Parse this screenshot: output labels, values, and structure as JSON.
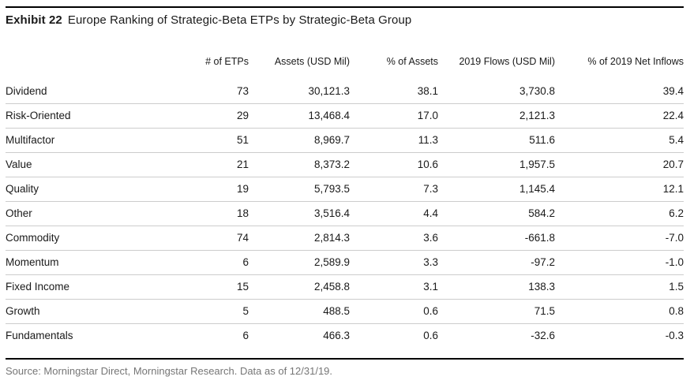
{
  "exhibit": {
    "label": "Exhibit 22",
    "title": "Europe Ranking of Strategic-Beta ETPs by Strategic-Beta Group"
  },
  "table": {
    "label_column_header": "",
    "columns": [
      "# of ETPs",
      "Assets (USD Mil)",
      "% of Assets",
      "2019 Flows (USD Mil)",
      "% of 2019 Net Inflows"
    ],
    "rows": [
      {
        "label": "Dividend",
        "values": [
          "73",
          "30,121.3",
          "38.1",
          "3,730.8",
          "39.4"
        ]
      },
      {
        "label": "Risk-Oriented",
        "values": [
          "29",
          "13,468.4",
          "17.0",
          "2,121.3",
          "22.4"
        ]
      },
      {
        "label": "Multifactor",
        "values": [
          "51",
          "8,969.7",
          "11.3",
          "511.6",
          "5.4"
        ]
      },
      {
        "label": "Value",
        "values": [
          "21",
          "8,373.2",
          "10.6",
          "1,957.5",
          "20.7"
        ]
      },
      {
        "label": "Quality",
        "values": [
          "19",
          "5,793.5",
          "7.3",
          "1,145.4",
          "12.1"
        ]
      },
      {
        "label": "Other",
        "values": [
          "18",
          "3,516.4",
          "4.4",
          "584.2",
          "6.2"
        ]
      },
      {
        "label": "Commodity",
        "values": [
          "74",
          "2,814.3",
          "3.6",
          "-661.8",
          "-7.0"
        ]
      },
      {
        "label": "Momentum",
        "values": [
          "6",
          "2,589.9",
          "3.3",
          "-97.2",
          "-1.0"
        ]
      },
      {
        "label": "Fixed Income",
        "values": [
          "15",
          "2,458.8",
          "3.1",
          "138.3",
          "1.5"
        ]
      },
      {
        "label": "Growth",
        "values": [
          "5",
          "488.5",
          "0.6",
          "71.5",
          "0.8"
        ]
      },
      {
        "label": "Fundamentals",
        "values": [
          "6",
          "466.3",
          "0.6",
          "-32.6",
          "-0.3"
        ]
      }
    ]
  },
  "footer": {
    "source": "Source: Morningstar Direct, Morningstar Research. Data as of 12/31/19."
  },
  "colors": {
    "text": "#1a1a1a",
    "source_text": "#767676",
    "rule": "#000000",
    "row_divider": "#cccccc",
    "background": "#ffffff"
  }
}
